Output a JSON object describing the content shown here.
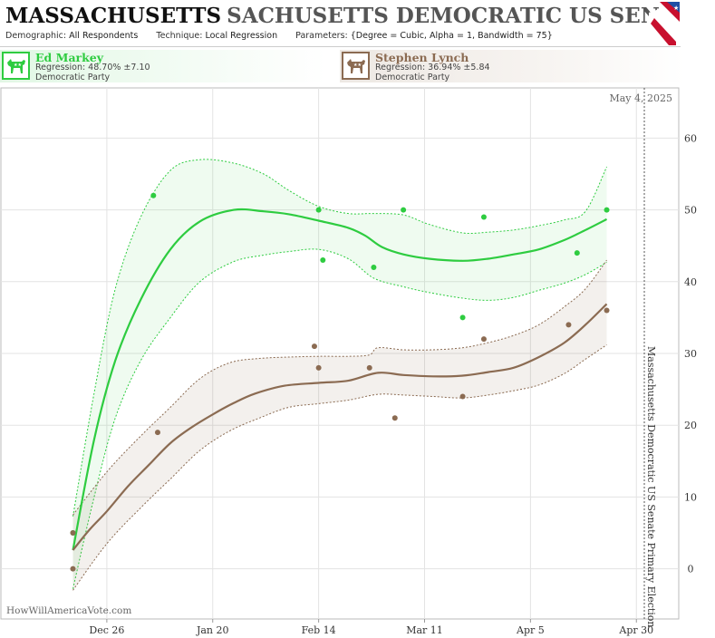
{
  "header": {
    "title_main": "MASSACHUSETTS",
    "title_sub": "SACHUSETTS DEMOCRATIC US SENATE PRIM",
    "demographic_label": "Demographic:",
    "demographic_value": "All Respondents",
    "technique_label": "Technique:",
    "technique_value": "Local Regression",
    "parameters_label": "Parameters:",
    "parameters_value": "{Degree = Cubic, Alpha = 1, Bandwidth = 75}"
  },
  "candidates": [
    {
      "name": "Ed Markey",
      "regression": "Regression: 48.70% ±7.10",
      "party": "Democratic Party",
      "color": "#2ecc40",
      "logo_icon": "donkey-icon"
    },
    {
      "name": "Stephen Lynch",
      "regression": "Regression: 36.94% ±5.84",
      "party": "Democratic Party",
      "color": "#8b6b52",
      "logo_icon": "donkey-icon"
    }
  ],
  "chart_data": {
    "type": "scatter",
    "title": "Massachusetts Democratic US Senate Primary Election",
    "date_label": "May 4, 2025",
    "x_ticks": [
      "Dec 26",
      "Jan 20",
      "Feb 14",
      "Mar 11",
      "Apr 5",
      "Apr 30"
    ],
    "x_tick_days": [
      0,
      25,
      50,
      75,
      100,
      125
    ],
    "x_range_days": [
      -25,
      135
    ],
    "y_ticks": [
      0,
      10,
      20,
      30,
      40,
      50,
      60
    ],
    "ylim": [
      -7,
      67
    ],
    "grid": true,
    "series": [
      {
        "name": "Ed Markey",
        "color": "#2ecc40",
        "points": [
          [
            -8,
            5
          ],
          [
            11,
            52
          ],
          [
            50,
            50
          ],
          [
            51,
            43
          ],
          [
            63,
            42
          ],
          [
            70,
            50
          ],
          [
            84,
            35
          ],
          [
            89,
            49
          ],
          [
            111,
            44
          ],
          [
            118,
            50
          ]
        ],
        "trend": [
          [
            -8,
            2.6
          ],
          [
            -3,
            18
          ],
          [
            2,
            29
          ],
          [
            8,
            37.5
          ],
          [
            15,
            44.5
          ],
          [
            22,
            48.4
          ],
          [
            30,
            50
          ],
          [
            37,
            49.8
          ],
          [
            43,
            49.4
          ],
          [
            50,
            48.5
          ],
          [
            57,
            47.5
          ],
          [
            61,
            46.4
          ],
          [
            65,
            44.8
          ],
          [
            70,
            43.8
          ],
          [
            76,
            43.2
          ],
          [
            84,
            42.9
          ],
          [
            90,
            43.2
          ],
          [
            96,
            43.8
          ],
          [
            102,
            44.5
          ],
          [
            108,
            45.8
          ],
          [
            113,
            47.2
          ],
          [
            118,
            48.7
          ]
        ],
        "band_upper": [
          [
            -8,
            7.3
          ],
          [
            -3,
            24.5
          ],
          [
            2,
            39
          ],
          [
            8,
            49
          ],
          [
            15,
            55.5
          ],
          [
            22,
            57
          ],
          [
            30,
            56.5
          ],
          [
            37,
            55
          ],
          [
            43,
            52.7
          ],
          [
            50,
            50.5
          ],
          [
            57,
            49.5
          ],
          [
            63,
            49.5
          ],
          [
            70,
            49.3
          ],
          [
            76,
            48
          ],
          [
            84,
            46.8
          ],
          [
            90,
            46.9
          ],
          [
            96,
            47.2
          ],
          [
            102,
            47.8
          ],
          [
            108,
            48.6
          ],
          [
            113,
            49.8
          ],
          [
            118,
            56
          ]
        ],
        "band_lower": [
          [
            -8,
            -2.8
          ],
          [
            -3,
            10
          ],
          [
            2,
            21
          ],
          [
            8,
            29
          ],
          [
            15,
            35
          ],
          [
            22,
            40
          ],
          [
            30,
            42.8
          ],
          [
            37,
            43.7
          ],
          [
            43,
            44.2
          ],
          [
            50,
            44.5
          ],
          [
            57,
            43.2
          ],
          [
            63,
            40.5
          ],
          [
            70,
            39.3
          ],
          [
            76,
            38.5
          ],
          [
            84,
            37.7
          ],
          [
            90,
            37.4
          ],
          [
            96,
            37.8
          ],
          [
            102,
            38.8
          ],
          [
            108,
            39.8
          ],
          [
            113,
            41
          ],
          [
            118,
            42.7
          ]
        ]
      },
      {
        "name": "Stephen Lynch",
        "color": "#8b6b52",
        "points": [
          [
            -8,
            0
          ],
          [
            -8,
            5
          ],
          [
            12,
            19
          ],
          [
            49,
            31
          ],
          [
            50,
            28
          ],
          [
            62,
            28
          ],
          [
            68,
            21
          ],
          [
            84,
            24
          ],
          [
            89,
            32
          ],
          [
            109,
            34
          ],
          [
            118,
            36
          ]
        ],
        "trend": [
          [
            -8,
            2.6
          ],
          [
            -4,
            5.5
          ],
          [
            0,
            8
          ],
          [
            5,
            11.5
          ],
          [
            10,
            14.5
          ],
          [
            15,
            17.5
          ],
          [
            20,
            19.7
          ],
          [
            25,
            21.5
          ],
          [
            30,
            23.1
          ],
          [
            35,
            24.4
          ],
          [
            42,
            25.5
          ],
          [
            50,
            25.9
          ],
          [
            57,
            26.2
          ],
          [
            64,
            27.3
          ],
          [
            70,
            27
          ],
          [
            77,
            26.8
          ],
          [
            84,
            26.9
          ],
          [
            90,
            27.4
          ],
          [
            96,
            28
          ],
          [
            102,
            29.5
          ],
          [
            108,
            31.5
          ],
          [
            113,
            34
          ],
          [
            118,
            36.9
          ]
        ],
        "band_upper": [
          [
            -8,
            7.5
          ],
          [
            0,
            13.5
          ],
          [
            8,
            18.5
          ],
          [
            15,
            22.5
          ],
          [
            22,
            26.5
          ],
          [
            29,
            28.7
          ],
          [
            36,
            29.3
          ],
          [
            43,
            29.5
          ],
          [
            50,
            29.6
          ],
          [
            57,
            29.6
          ],
          [
            62,
            29.8
          ],
          [
            64,
            30.8
          ],
          [
            70,
            30.5
          ],
          [
            77,
            30.5
          ],
          [
            84,
            30.8
          ],
          [
            90,
            31.5
          ],
          [
            96,
            32.5
          ],
          [
            102,
            34
          ],
          [
            108,
            36.5
          ],
          [
            113,
            39
          ],
          [
            118,
            43
          ]
        ],
        "band_lower": [
          [
            -8,
            -3
          ],
          [
            0,
            3.5
          ],
          [
            8,
            8.5
          ],
          [
            15,
            12.5
          ],
          [
            22,
            16.5
          ],
          [
            29,
            19.2
          ],
          [
            36,
            21
          ],
          [
            43,
            22.5
          ],
          [
            50,
            23
          ],
          [
            57,
            23.5
          ],
          [
            64,
            24.3
          ],
          [
            70,
            24.2
          ],
          [
            77,
            24
          ],
          [
            84,
            23.8
          ],
          [
            90,
            24.2
          ],
          [
            96,
            24.8
          ],
          [
            102,
            25.6
          ],
          [
            108,
            27.2
          ],
          [
            113,
            29.2
          ],
          [
            118,
            31.2
          ]
        ]
      }
    ]
  },
  "footer": {
    "watermark": "HowWillAmericaVote.com"
  }
}
